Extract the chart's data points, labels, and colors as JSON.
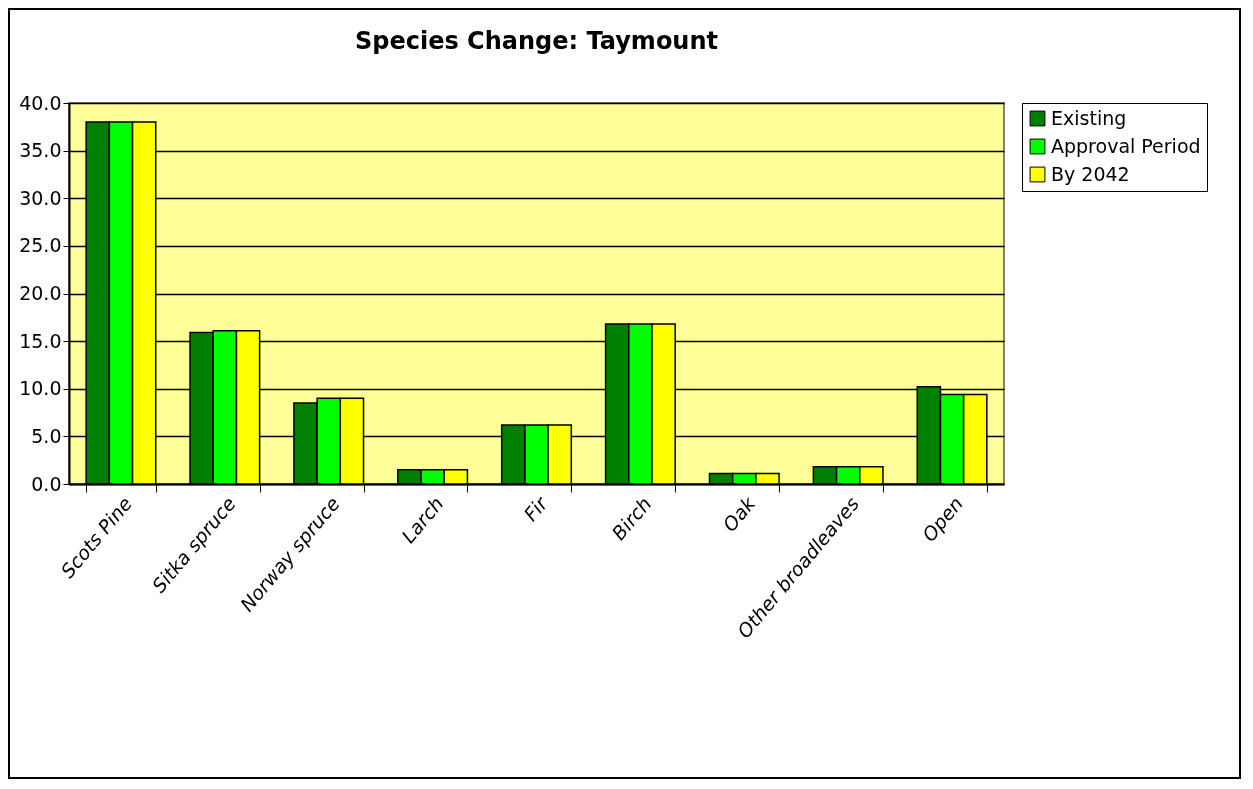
{
  "chart_data": {
    "type": "bar",
    "title": "Species Change: Taymount",
    "categories": [
      "Scots Pine",
      "Sitka spruce",
      "Norway spruce",
      "Larch",
      "Fir",
      "Birch",
      "Oak",
      "Other broadleaves",
      "Open"
    ],
    "series": [
      {
        "name": "Existing",
        "color": "#008000",
        "values": [
          38.0,
          15.9,
          8.5,
          1.5,
          6.2,
          16.8,
          1.1,
          1.8,
          10.2
        ]
      },
      {
        "name": "Approval Period",
        "color": "#00ff00",
        "values": [
          38.0,
          16.1,
          9.0,
          1.5,
          6.2,
          16.8,
          1.1,
          1.8,
          9.4
        ]
      },
      {
        "name": "By 2042",
        "color": "#ffff00",
        "values": [
          38.0,
          16.1,
          9.0,
          1.5,
          6.2,
          16.8,
          1.1,
          1.8,
          9.4
        ]
      }
    ],
    "ylim": [
      0,
      40
    ],
    "yticks": [
      {
        "value": 0,
        "label": "0.0"
      },
      {
        "value": 5,
        "label": "5.0"
      },
      {
        "value": 10,
        "label": "10.0"
      },
      {
        "value": 15,
        "label": "15.0"
      },
      {
        "value": 20,
        "label": "20.0"
      },
      {
        "value": 25,
        "label": "25.0"
      },
      {
        "value": 30,
        "label": "30.0"
      },
      {
        "value": 35,
        "label": "35.0"
      },
      {
        "value": 40,
        "label": "40.0"
      }
    ],
    "grid": "y",
    "legend": "right"
  }
}
